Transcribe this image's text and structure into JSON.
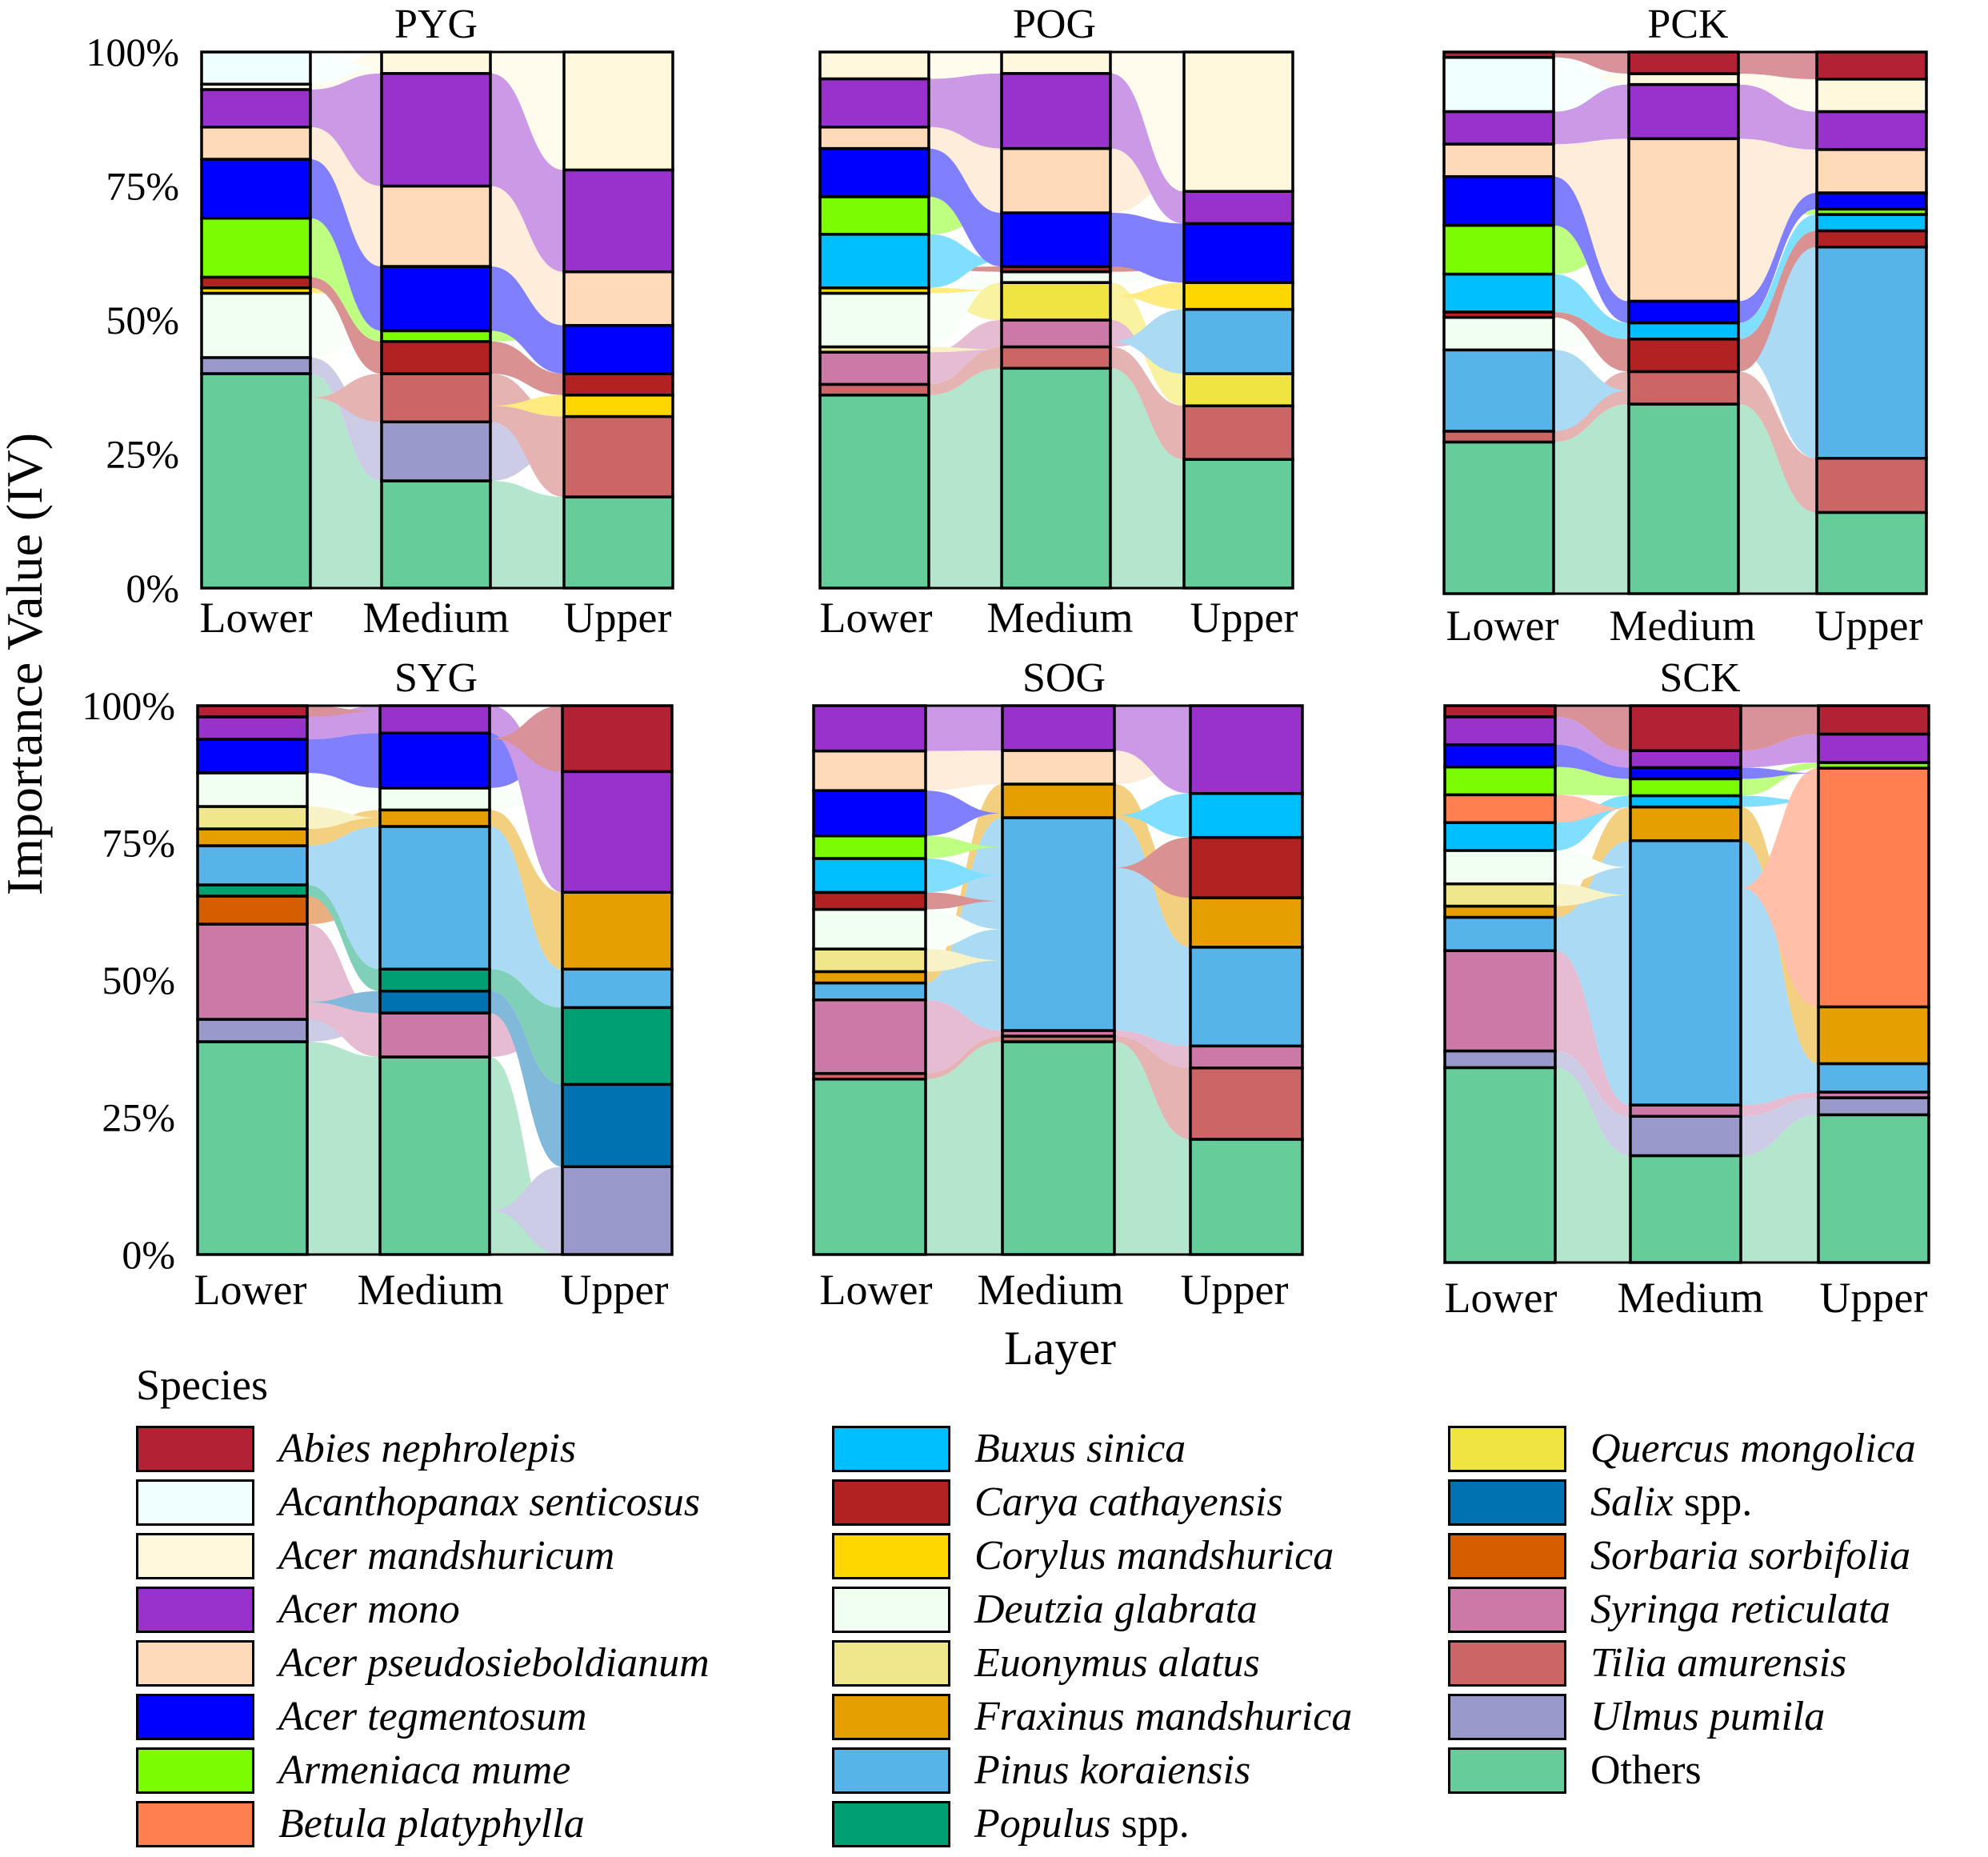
{
  "chart_data": {
    "type": "stacked bar with alluvial flows",
    "ylabel": "Importance Value (IV)",
    "xlabel": "Layer",
    "y_ticks": [
      "0%",
      "25%",
      "50%",
      "75%",
      "100%"
    ],
    "ylim": [
      0,
      100
    ],
    "categories": [
      "Lower",
      "Medium",
      "Upper"
    ],
    "species": [
      {
        "key": "others",
        "name": "Others",
        "italic": "",
        "suffix": "Others",
        "color": "#66CC99"
      },
      {
        "key": "ulmus",
        "name": "Ulmus pumila",
        "italic": "Ulmus pumila",
        "suffix": "",
        "color": "#9999CC"
      },
      {
        "key": "tilia",
        "name": "Tilia amurensis",
        "italic": "Tilia amurensis",
        "suffix": "",
        "color": "#CC6666"
      },
      {
        "key": "syringa",
        "name": "Syringa reticulata",
        "italic": "Syringa reticulata",
        "suffix": "",
        "color": "#CC79A7"
      },
      {
        "key": "sorbaria",
        "name": "Sorbaria sorbifolia",
        "italic": "Sorbaria sorbifolia",
        "suffix": "",
        "color": "#D55E00"
      },
      {
        "key": "salix",
        "name": "Salix spp.",
        "italic": "Salix",
        "suffix": " spp.",
        "color": "#0072B2"
      },
      {
        "key": "quercus",
        "name": "Quercus mongolica",
        "italic": "Quercus mongolica",
        "suffix": "",
        "color": "#F0E442"
      },
      {
        "key": "populus",
        "name": "Populus spp.",
        "italic": "Populus",
        "suffix": " spp.",
        "color": "#009E73"
      },
      {
        "key": "pinus",
        "name": "Pinus koraiensis",
        "italic": "Pinus koraiensis",
        "suffix": "",
        "color": "#56B4E9"
      },
      {
        "key": "fraxinus",
        "name": "Fraxinus mandshurica",
        "italic": "Fraxinus mandshurica",
        "suffix": "",
        "color": "#E69F00"
      },
      {
        "key": "euonymus",
        "name": "Euonymus alatus",
        "italic": "Euonymus alatus",
        "suffix": "",
        "color": "#F0E68C"
      },
      {
        "key": "deutzia",
        "name": "Deutzia glabrata",
        "italic": "Deutzia glabrata",
        "suffix": "",
        "color": "#F0FFF0"
      },
      {
        "key": "corylus",
        "name": "Corylus mandshurica",
        "italic": "Corylus mandshurica",
        "suffix": "",
        "color": "#FFD700"
      },
      {
        "key": "carya",
        "name": "Carya cathayensis",
        "italic": "Carya cathayensis",
        "suffix": "",
        "color": "#B22222"
      },
      {
        "key": "buxus",
        "name": "Buxus sinica",
        "italic": "Buxus sinica",
        "suffix": "",
        "color": "#00BFFF"
      },
      {
        "key": "betula",
        "name": "Betula platyphylla",
        "italic": "Betula platyphylla",
        "suffix": "",
        "color": "#FF7F50"
      },
      {
        "key": "armeniaca",
        "name": "Armeniaca mume",
        "italic": "Armeniaca mume",
        "suffix": "",
        "color": "#7CFC00"
      },
      {
        "key": "acer_teg",
        "name": "Acer tegmentosum",
        "italic": "Acer tegmentosum",
        "suffix": "",
        "color": "#0000FF"
      },
      {
        "key": "acer_pse",
        "name": "Acer pseudosieboldianum",
        "italic": "Acer pseudosieboldianum",
        "suffix": "",
        "color": "#FFDAB9"
      },
      {
        "key": "acer_mono",
        "name": "Acer mono",
        "italic": "Acer mono",
        "suffix": "",
        "color": "#9932CC"
      },
      {
        "key": "acer_man",
        "name": "Acer mandshuricum",
        "italic": "Acer mandshuricum",
        "suffix": "",
        "color": "#FFF8DC"
      },
      {
        "key": "acanthopanax",
        "name": "Acanthopanax senticosus",
        "italic": "Acanthopanax senticosus",
        "suffix": "",
        "color": "#F0FFFF"
      },
      {
        "key": "abies",
        "name": "Abies nephrolepis",
        "italic": "Abies nephrolepis",
        "suffix": "",
        "color": "#B22234"
      }
    ],
    "panels": [
      {
        "title": "PYG",
        "layers": [
          {
            "others": 40,
            "ulmus": 3,
            "deutzia": 12,
            "corylus": 1,
            "carya": 2,
            "armeniaca": 11,
            "acer_teg": 11,
            "acer_pse": 6,
            "acer_mono": 7,
            "acer_man": 1,
            "acanthopanax": 6
          },
          {
            "others": 20,
            "ulmus": 11,
            "tilia": 9,
            "carya": 6,
            "armeniaca": 2,
            "acer_teg": 12,
            "acer_pse": 15,
            "acer_mono": 21,
            "acer_man": 4
          },
          {
            "others": 17,
            "tilia": 15,
            "corylus": 4,
            "carya": 4,
            "acer_teg": 9,
            "acer_pse": 10,
            "acer_mono": 19,
            "acer_man": 22
          }
        ]
      },
      {
        "title": "POG",
        "layers": [
          {
            "others": 36,
            "tilia": 2,
            "syringa": 6,
            "corylus": 1,
            "deutzia": 10,
            "euonymus": 1,
            "buxus": 10,
            "armeniaca": 7,
            "acer_teg": 9,
            "acer_pse": 4,
            "acer_mono": 9,
            "acer_man": 5
          },
          {
            "others": 41,
            "tilia": 4,
            "syringa": 5,
            "quercus": 7,
            "deutzia": 2,
            "carya": 1,
            "acer_teg": 10,
            "acer_pse": 12,
            "acer_mono": 14,
            "acer_man": 4
          },
          {
            "others": 24,
            "tilia": 10,
            "quercus": 6,
            "pinus": 12,
            "corylus": 5,
            "acer_teg": 11,
            "acer_mono": 6,
            "acer_man": 26
          }
        ]
      },
      {
        "title": "PCK",
        "layers": [
          {
            "others": 28,
            "tilia": 2,
            "pinus": 15,
            "deutzia": 6,
            "carya": 1,
            "buxus": 7,
            "armeniaca": 9,
            "acer_teg": 9,
            "acer_pse": 6,
            "acer_mono": 6,
            "acanthopanax": 10,
            "abies": 1
          },
          {
            "others": 35,
            "tilia": 6,
            "carya": 6,
            "buxus": 3,
            "acer_teg": 4,
            "acer_pse": 30,
            "acer_mono": 10,
            "acer_man": 2,
            "abies": 4
          },
          {
            "others": 15,
            "tilia": 10,
            "pinus": 39,
            "carya": 3,
            "buxus": 3,
            "armeniaca": 1,
            "acer_teg": 3,
            "acer_pse": 8,
            "acer_mono": 7,
            "acer_man": 6,
            "abies": 5
          }
        ]
      },
      {
        "title": "SYG",
        "layers": [
          {
            "others": 38,
            "ulmus": 4,
            "syringa": 17,
            "sorbaria": 5,
            "populus": 2,
            "pinus": 7,
            "fraxinus": 3,
            "euonymus": 4,
            "deutzia": 6,
            "acer_teg": 6,
            "acer_mono": 4,
            "abies": 2
          },
          {
            "others": 36,
            "syringa": 8,
            "salix": 4,
            "populus": 4,
            "pinus": 26,
            "fraxinus": 3,
            "deutzia": 4,
            "acer_teg": 10,
            "acer_mono": 5
          },
          {
            "others": 0,
            "ulmus": 16,
            "salix": 15,
            "populus": 14,
            "pinus": 7,
            "fraxinus": 14,
            "acer_mono": 22,
            "abies": 12
          }
        ]
      },
      {
        "title": "SOG",
        "layers": [
          {
            "others": 31,
            "tilia": 1,
            "syringa": 13,
            "pinus": 3,
            "fraxinus": 2,
            "euonymus": 4,
            "deutzia": 7,
            "carya": 3,
            "buxus": 6,
            "armeniaca": 4,
            "acer_teg": 8,
            "acer_pse": 7,
            "acer_mono": 8
          },
          {
            "others": 38,
            "tilia": 1,
            "syringa": 1,
            "pinus": 38,
            "fraxinus": 6,
            "acer_pse": 6,
            "acer_mono": 8
          },
          {
            "others": 21,
            "tilia": 13,
            "syringa": 4,
            "pinus": 18,
            "fraxinus": 9,
            "carya": 11,
            "buxus": 8,
            "acer_mono": 16
          }
        ]
      },
      {
        "title": "SCK",
        "layers": [
          {
            "others": 35,
            "ulmus": 3,
            "syringa": 18,
            "pinus": 6,
            "fraxinus": 2,
            "euonymus": 4,
            "deutzia": 6,
            "buxus": 5,
            "betula": 5,
            "armeniaca": 5,
            "acer_teg": 4,
            "acer_mono": 5,
            "abies": 2
          },
          {
            "others": 19,
            "ulmus": 7,
            "syringa": 2,
            "pinus": 47,
            "fraxinus": 6,
            "buxus": 2,
            "armeniaca": 3,
            "acer_teg": 2,
            "acer_mono": 3,
            "abies": 8
          },
          {
            "others": 26,
            "ulmus": 3,
            "syringa": 1,
            "pinus": 5,
            "fraxinus": 10,
            "betula": 42,
            "armeniaca": 1,
            "acer_mono": 5,
            "abies": 5
          }
        ]
      }
    ]
  },
  "legend": {
    "title": "Species",
    "columns": [
      [
        "abies",
        "acanthopanax",
        "acer_man",
        "acer_mono",
        "acer_pse",
        "acer_teg",
        "armeniaca",
        "betula"
      ],
      [
        "buxus",
        "carya",
        "corylus",
        "deutzia",
        "euonymus",
        "fraxinus",
        "pinus",
        "populus"
      ],
      [
        "quercus",
        "salix",
        "sorbaria",
        "syringa",
        "tilia",
        "ulmus",
        "others"
      ]
    ]
  }
}
